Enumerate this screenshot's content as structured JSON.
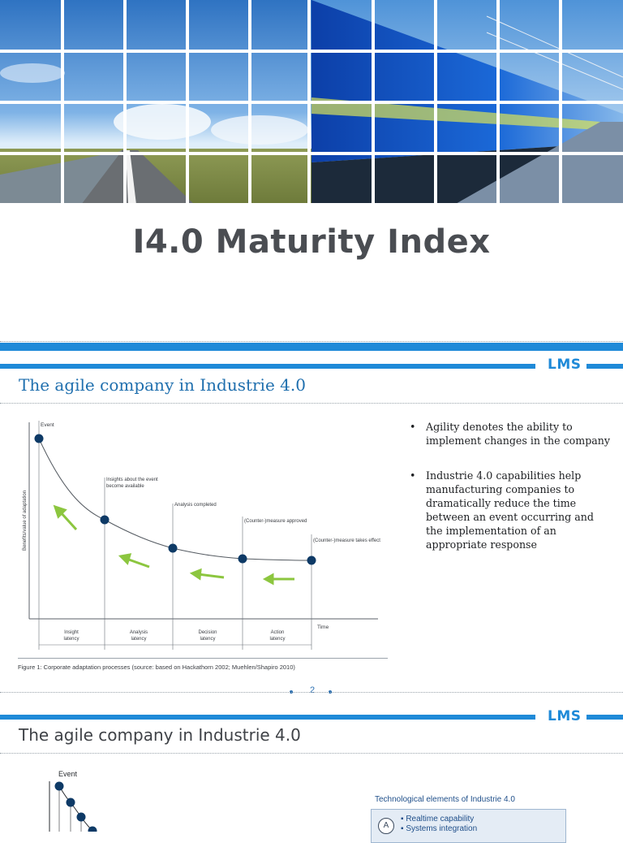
{
  "document": {
    "title": "I4.0 Maturity Index"
  },
  "slide2": {
    "logo": "LMS",
    "title": "The agile company in Industrie 4.0",
    "figure": {
      "event_label": "Event",
      "y_axis_label": "Benefits/value of adaptation",
      "x_axis_label": "Time",
      "milestones": [
        "Insights about the event become available",
        "Analysis completed",
        "(Counter-)measure approved",
        "(Counter-)measure takes effect"
      ],
      "latencies": [
        "Insight latency",
        "Analysis latency",
        "Decision latency",
        "Action latency"
      ],
      "caption": "Figure 1: Corporate adaptation processes (source: based on Hackathorn 2002; Muehlen/Shapiro 2010)"
    },
    "bullets": [
      "Agility denotes the ability to implement changes in the company",
      "Industrie 4.0 capabilities help manufacturing companies to dramatically reduce the time between an event occurring and the implementation of an appropriate response"
    ],
    "page_number": "2"
  },
  "slide3": {
    "logo": "LMS",
    "title": "The agile company in Industrie 4.0",
    "event_label": "Event",
    "tech_label": "Technological elements of Industrie 4.0",
    "tech_box": {
      "badge": "A",
      "items": [
        "Realtime capability",
        "Systems integration"
      ]
    }
  },
  "colors": {
    "accent": "#1f8ad8",
    "marker": "#0e3a66",
    "arrow": "#8cc63f"
  }
}
